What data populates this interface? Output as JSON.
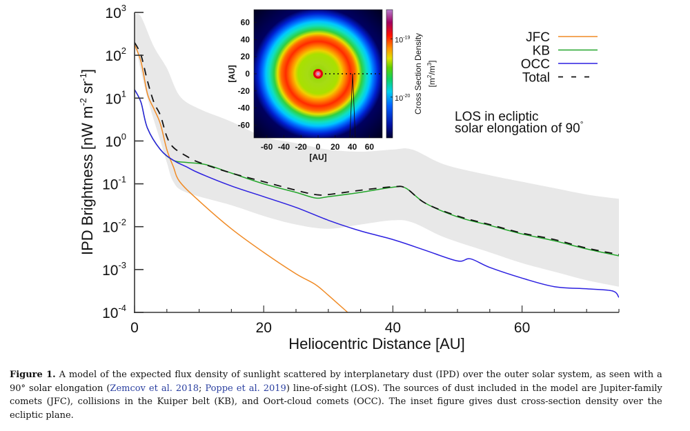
{
  "chart_data": {
    "type": "line",
    "title": "",
    "xlabel": "Heliocentric Distance [AU]",
    "ylabel": "IPD Brightness [nW m^-2 sr^-1]",
    "ylabel_parts": {
      "main": "IPD Brightness [nW m",
      "sup1": "-2",
      "mid": " sr",
      "sup2": "-1",
      "end": "]"
    },
    "xscale": "linear",
    "yscale": "log",
    "xlim": [
      0,
      75
    ],
    "ylim": [
      0.0001,
      1000
    ],
    "x_ticks": [
      0,
      20,
      40,
      60
    ],
    "x_tick_labels": [
      "0",
      "20",
      "40",
      "60"
    ],
    "x_minor_step": 5,
    "y_ticks": [
      {
        "base": "10",
        "exp": "3",
        "log": 3
      },
      {
        "base": "10",
        "exp": "2",
        "log": 2
      },
      {
        "base": "10",
        "exp": "1",
        "log": 1
      },
      {
        "base": "10",
        "exp": "0",
        "log": 0
      },
      {
        "base": "10",
        "exp": "-1",
        "log": -1
      },
      {
        "base": "10",
        "exp": "-2",
        "log": -2
      },
      {
        "base": "10",
        "exp": "-3",
        "log": -3
      },
      {
        "base": "10",
        "exp": "-4",
        "log": -4
      }
    ],
    "grid": false,
    "legend_position": "top-right",
    "annotation": {
      "line1": "LOS in ecliptic",
      "line2": "solar elongation of 90",
      "degree": "°"
    },
    "uncertainty_band": {
      "name": "Total uncertainty range",
      "color": "#e8e8e8",
      "upper_log10": [
        [
          0,
          2.95
        ],
        [
          1,
          2.9
        ],
        [
          3,
          2.2
        ],
        [
          5,
          1.7
        ],
        [
          7,
          1.05
        ],
        [
          10,
          0.75
        ],
        [
          15,
          0.45
        ],
        [
          20,
          0.1
        ],
        [
          25,
          -0.05
        ],
        [
          30,
          -0.2
        ],
        [
          35,
          -0.25
        ],
        [
          40,
          -0.2
        ],
        [
          43,
          -0.2
        ],
        [
          48,
          -0.55
        ],
        [
          55,
          -0.8
        ],
        [
          60,
          -0.95
        ],
        [
          65,
          -1.1
        ],
        [
          70,
          -1.25
        ],
        [
          75,
          -1.35
        ]
      ],
      "lower_log10": [
        [
          0,
          2.3
        ],
        [
          2,
          1.0
        ],
        [
          4,
          0.0
        ],
        [
          5,
          -0.5
        ],
        [
          6,
          -0.95
        ],
        [
          8,
          -1.2
        ],
        [
          15,
          -1.5
        ],
        [
          20,
          -1.75
        ],
        [
          25,
          -1.95
        ],
        [
          30,
          -2.05
        ],
        [
          35,
          -1.95
        ],
        [
          40,
          -1.85
        ],
        [
          43,
          -1.9
        ],
        [
          48,
          -2.25
        ],
        [
          55,
          -2.6
        ],
        [
          60,
          -2.85
        ],
        [
          65,
          -3.05
        ],
        [
          70,
          -3.25
        ],
        [
          75,
          -3.4
        ]
      ]
    },
    "series": [
      {
        "name": "JFC",
        "color": "#f08a24",
        "dash": false,
        "points_log10": [
          [
            0,
            2.25
          ],
          [
            1,
            1.85
          ],
          [
            2,
            1.1
          ],
          [
            3,
            0.75
          ],
          [
            4,
            0.4
          ],
          [
            5,
            -0.2
          ],
          [
            6,
            -0.6
          ],
          [
            7,
            -0.95
          ],
          [
            10,
            -1.4
          ],
          [
            15,
            -2.05
          ],
          [
            20,
            -2.6
          ],
          [
            25,
            -3.1
          ],
          [
            28,
            -3.35
          ],
          [
            30,
            -3.6
          ],
          [
            33,
            -4.0
          ]
        ]
      },
      {
        "name": "KB",
        "color": "#22a52a",
        "dash": false,
        "points_log10": [
          [
            0,
            1.2
          ],
          [
            1,
            0.9
          ],
          [
            2,
            0.3
          ],
          [
            4,
            -0.2
          ],
          [
            6,
            -0.45
          ],
          [
            8,
            -0.5
          ],
          [
            11,
            -0.55
          ],
          [
            15,
            -0.75
          ],
          [
            20,
            -1.0
          ],
          [
            25,
            -1.2
          ],
          [
            28,
            -1.33
          ],
          [
            30,
            -1.3
          ],
          [
            35,
            -1.2
          ],
          [
            40,
            -1.08
          ],
          [
            42,
            -1.1
          ],
          [
            45,
            -1.45
          ],
          [
            50,
            -1.77
          ],
          [
            55,
            -1.97
          ],
          [
            60,
            -2.17
          ],
          [
            65,
            -2.33
          ],
          [
            70,
            -2.52
          ],
          [
            75,
            -2.68
          ]
        ]
      },
      {
        "name": "OCC",
        "color": "#2b1fe0",
        "dash": false,
        "points_log10": [
          [
            0,
            1.2
          ],
          [
            1,
            0.9
          ],
          [
            2,
            0.3
          ],
          [
            4,
            -0.2
          ],
          [
            6,
            -0.45
          ],
          [
            8,
            -0.6
          ],
          [
            10,
            -0.75
          ],
          [
            15,
            -1.05
          ],
          [
            20,
            -1.3
          ],
          [
            25,
            -1.55
          ],
          [
            30,
            -1.85
          ],
          [
            35,
            -2.1
          ],
          [
            40,
            -2.3
          ],
          [
            45,
            -2.55
          ],
          [
            50,
            -2.8
          ],
          [
            52,
            -2.75
          ],
          [
            55,
            -2.95
          ],
          [
            60,
            -3.2
          ],
          [
            65,
            -3.4
          ],
          [
            70,
            -3.45
          ],
          [
            74,
            -3.5
          ],
          [
            75,
            -3.65
          ]
        ]
      },
      {
        "name": "Total",
        "color": "#111111",
        "dash": true,
        "points_log10": [
          [
            0,
            2.3
          ],
          [
            1,
            2.0
          ],
          [
            2,
            1.4
          ],
          [
            3,
            0.9
          ],
          [
            4,
            0.6
          ],
          [
            5,
            0.1
          ],
          [
            6,
            -0.15
          ],
          [
            8,
            -0.35
          ],
          [
            10,
            -0.5
          ],
          [
            15,
            -0.75
          ],
          [
            20,
            -0.95
          ],
          [
            25,
            -1.15
          ],
          [
            28,
            -1.25
          ],
          [
            30,
            -1.25
          ],
          [
            35,
            -1.15
          ],
          [
            40,
            -1.07
          ],
          [
            42,
            -1.1
          ],
          [
            45,
            -1.45
          ],
          [
            50,
            -1.75
          ],
          [
            55,
            -1.95
          ],
          [
            60,
            -2.15
          ],
          [
            65,
            -2.3
          ],
          [
            70,
            -2.5
          ],
          [
            75,
            -2.65
          ]
        ]
      }
    ],
    "inset": {
      "type": "heatmap",
      "xlabel": "[AU]",
      "ylabel": "[AU]",
      "xlim": [
        -75,
        75
      ],
      "ylim": [
        -75,
        75
      ],
      "x_tick_labels": [
        "-60",
        "-40",
        "-20",
        "0",
        "20",
        "40",
        "60"
      ],
      "y_tick_labels": [
        "60",
        "40",
        "20",
        "0",
        "-20",
        "-40",
        "-60"
      ],
      "tick_values": [
        -60,
        -40,
        -20,
        0,
        20,
        40,
        60
      ],
      "colorbar_label": "Cross Section Density",
      "colorbar_units": {
        "main": "[m",
        "sup1": "2",
        "mid": "/m",
        "sup2": "3",
        "end": "]"
      },
      "colorbar_ticks": [
        {
          "base": "10",
          "exp": "-19",
          "log": -19
        },
        {
          "base": "10",
          "exp": "-20",
          "log": -20
        }
      ],
      "colorbar_range_log10": [
        -20.7,
        -18.5
      ],
      "description": "Dust cross-section density over the ecliptic plane: bright core at the Sun, green plateau inside ~25 AU, red ring peaking near 40 AU (Kuiper belt), fading through cyan to dark blue beyond ~65 AU. Dotted line marks line of sight from Sun along +x; black wedge marks LOS at ~40 AU."
    }
  },
  "caption": {
    "label": "Figure 1.",
    "part1": " A model of the expected flux density of sunlight scattered by interplanetary dust (IPD) over the outer solar system, as seen with a 90° solar elongation (",
    "cite1": "Zemcov et al. 2018",
    "sep": "; ",
    "cite2": "Poppe et al. 2019",
    "part2": ") line-of-sight (LOS). The sources of dust included in the model are Jupiter-family comets (JFC), collisions in the Kuiper belt (KB), and Oort-cloud comets (OCC). The inset figure gives dust cross-section density over the ecliptic plane."
  }
}
